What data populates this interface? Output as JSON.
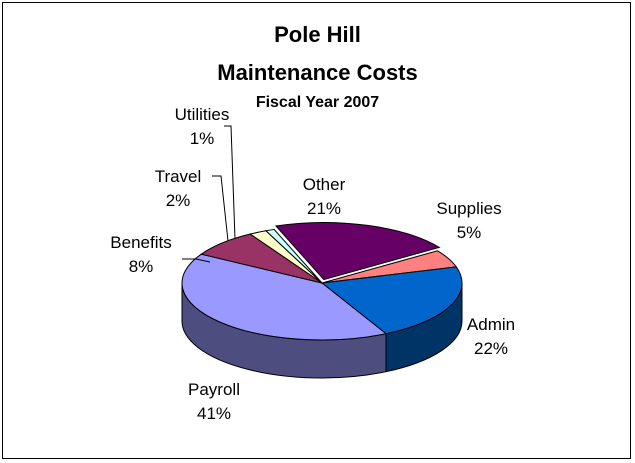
{
  "chart_data": {
    "type": "pie",
    "title": "Pole Hill",
    "title_line2": "Maintenance Costs",
    "subtitle": "Fiscal Year 2007",
    "style": "3d-exploded",
    "slices": [
      {
        "label": "Other",
        "value": 21,
        "pct": "21%",
        "color": "#660066"
      },
      {
        "label": "Supplies",
        "value": 5,
        "pct": "5%",
        "color": "#ff8080"
      },
      {
        "label": "Admin",
        "value": 22,
        "pct": "22%",
        "color": "#0066cc"
      },
      {
        "label": "Payroll",
        "value": 41,
        "pct": "41%",
        "color": "#9999ff"
      },
      {
        "label": "Benefits",
        "value": 8,
        "pct": "8%",
        "color": "#993366"
      },
      {
        "label": "Travel",
        "value": 2,
        "pct": "2%",
        "color": "#ffffcc"
      },
      {
        "label": "Utilities",
        "value": 1,
        "pct": "1%",
        "color": "#ccffff"
      }
    ]
  }
}
